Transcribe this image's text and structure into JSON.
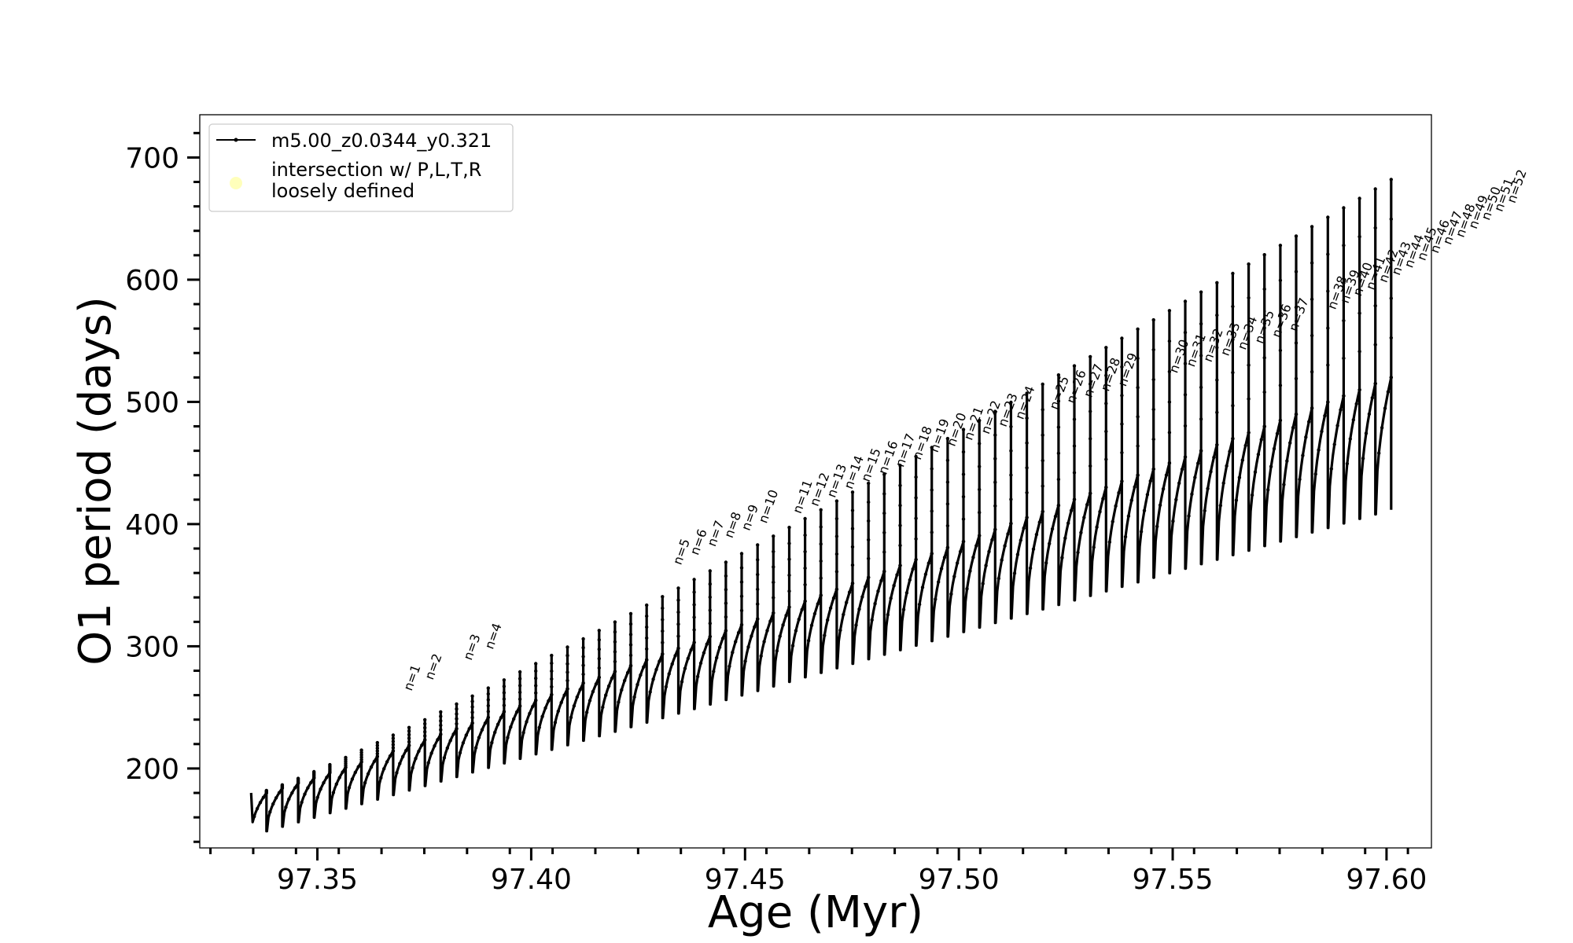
{
  "chart_data": {
    "type": "line",
    "title": "",
    "xlabel": "Age (Myr)",
    "ylabel": "O1 period (days)",
    "xlim": [
      97.3225,
      97.6105
    ],
    "ylim": [
      135,
      735
    ],
    "xticks": [
      "97.35",
      "97.40",
      "97.45",
      "97.50",
      "97.55",
      "97.60"
    ],
    "yticks": [
      "200",
      "300",
      "400",
      "500",
      "600",
      "700"
    ],
    "xtick_values": [
      97.35,
      97.4,
      97.45,
      97.5,
      97.55,
      97.6
    ],
    "ytick_values": [
      200,
      300,
      400,
      500,
      600,
      700
    ],
    "grid": false,
    "legend_position": "top-left",
    "line_color": "#000000",
    "intersection_color": "#ffffaa",
    "series": [
      {
        "name": "m5.00_z0.0344_y0.321",
        "marker": "dot-line"
      },
      {
        "name": "intersection w/ P,L,T,R\nloosely defined",
        "marker": "circle"
      }
    ],
    "pulse": {
      "age_start": 97.3345,
      "age_end": 97.5975,
      "count": 72,
      "floor_start": 145,
      "floor_end": 408,
      "plateau_start": 180,
      "plateau_end": 520,
      "spike_start": 182,
      "spike_end": 682
    },
    "annotations": [
      {
        "text": "n=1",
        "x": 97.3755,
        "y": 263
      },
      {
        "text": "n=2",
        "x": 97.3805,
        "y": 272
      },
      {
        "text": "n=3",
        "x": 97.3895,
        "y": 288
      },
      {
        "text": "n=4",
        "x": 97.3945,
        "y": 297
      },
      {
        "text": "n=5",
        "x": 97.4385,
        "y": 366
      },
      {
        "text": "n=6",
        "x": 97.4425,
        "y": 374
      },
      {
        "text": "n=7",
        "x": 97.4465,
        "y": 381
      },
      {
        "text": "n=8",
        "x": 97.4505,
        "y": 388
      },
      {
        "text": "n=9",
        "x": 97.4545,
        "y": 394
      },
      {
        "text": "n=10",
        "x": 97.4585,
        "y": 400
      },
      {
        "text": "n=11",
        "x": 97.4665,
        "y": 408
      },
      {
        "text": "n=12",
        "x": 97.4705,
        "y": 414
      },
      {
        "text": "n=13",
        "x": 97.4745,
        "y": 421
      },
      {
        "text": "n=14",
        "x": 97.4785,
        "y": 428
      },
      {
        "text": "n=15",
        "x": 97.4825,
        "y": 434
      },
      {
        "text": "n=16",
        "x": 97.4865,
        "y": 440
      },
      {
        "text": "n=17",
        "x": 97.4905,
        "y": 446
      },
      {
        "text": "n=18",
        "x": 97.4945,
        "y": 452
      },
      {
        "text": "n=19",
        "x": 97.4985,
        "y": 458
      },
      {
        "text": "n=20",
        "x": 97.5025,
        "y": 463
      },
      {
        "text": "n=21",
        "x": 97.5065,
        "y": 468
      },
      {
        "text": "n=22",
        "x": 97.5105,
        "y": 473
      },
      {
        "text": "n=23",
        "x": 97.5145,
        "y": 479
      },
      {
        "text": "n=24",
        "x": 97.5185,
        "y": 485
      },
      {
        "text": "n=25",
        "x": 97.5265,
        "y": 493
      },
      {
        "text": "n=26",
        "x": 97.5305,
        "y": 498
      },
      {
        "text": "n=27",
        "x": 97.5345,
        "y": 503
      },
      {
        "text": "n=28",
        "x": 97.5385,
        "y": 508
      },
      {
        "text": "n=29",
        "x": 97.5425,
        "y": 512
      },
      {
        "text": "n=30",
        "x": 97.5545,
        "y": 523
      },
      {
        "text": "n=31",
        "x": 97.5585,
        "y": 528
      },
      {
        "text": "n=32",
        "x": 97.5625,
        "y": 532
      },
      {
        "text": "n=33",
        "x": 97.5665,
        "y": 537
      },
      {
        "text": "n=34",
        "x": 97.5705,
        "y": 542
      },
      {
        "text": "n=35",
        "x": 97.5745,
        "y": 547
      },
      {
        "text": "n=36",
        "x": 97.5785,
        "y": 552
      },
      {
        "text": "n=37",
        "x": 97.5825,
        "y": 557
      },
      {
        "text": "n=38",
        "x": 97.5915,
        "y": 575
      },
      {
        "text": "n=39",
        "x": 97.5945,
        "y": 580
      },
      {
        "text": "n=40",
        "x": 97.5975,
        "y": 586
      },
      {
        "text": "n=41",
        "x": 97.6005,
        "y": 591
      },
      {
        "text": "n=42",
        "x": 97.6035,
        "y": 597
      },
      {
        "text": "n=43",
        "x": 97.6065,
        "y": 603
      },
      {
        "text": "n=44",
        "x": 97.6095,
        "y": 609
      },
      {
        "text": "n=45",
        "x": 97.6125,
        "y": 615
      },
      {
        "text": "n=46",
        "x": 97.6155,
        "y": 621
      },
      {
        "text": "n=47",
        "x": 97.6185,
        "y": 628
      },
      {
        "text": "n=48",
        "x": 97.6215,
        "y": 634
      },
      {
        "text": "n=49",
        "x": 97.6245,
        "y": 641
      },
      {
        "text": "n=50",
        "x": 97.6275,
        "y": 648
      },
      {
        "text": "n=51",
        "x": 97.6305,
        "y": 655
      },
      {
        "text": "n=52",
        "x": 97.6335,
        "y": 662
      }
    ]
  }
}
